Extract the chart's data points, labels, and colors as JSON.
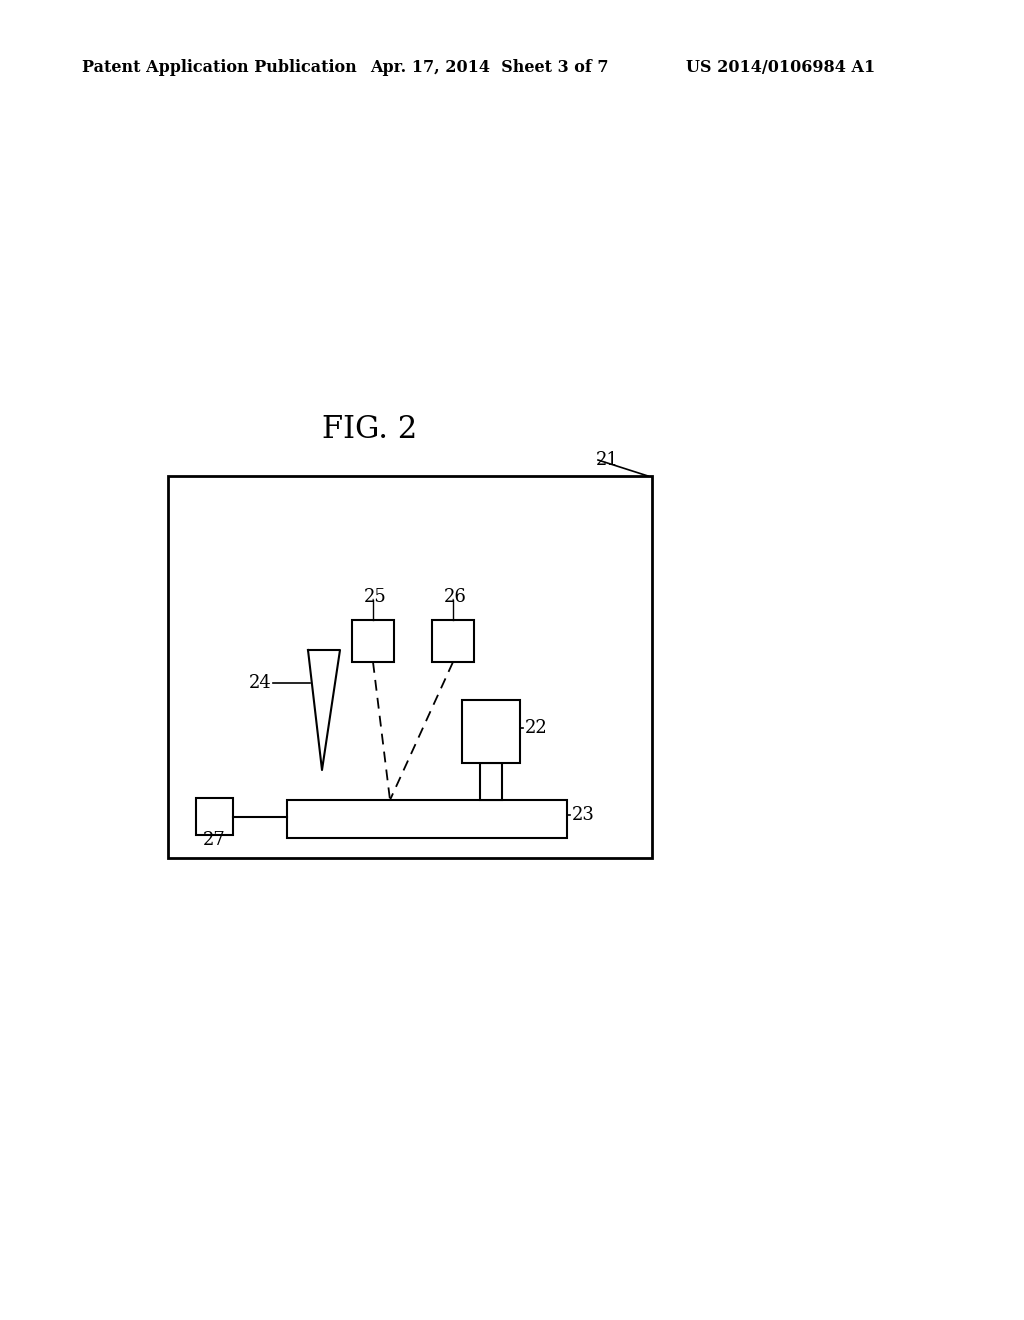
{
  "bg_color": "#ffffff",
  "fig_label": "FIG. 2",
  "header_left": "Patent Application Publication",
  "header_mid": "Apr. 17, 2014  Sheet 3 of 7",
  "header_right": "US 2014/0106984 A1",
  "label_21": "21",
  "label_22": "22",
  "label_23": "23",
  "label_24": "24",
  "label_25": "25",
  "label_26": "26",
  "label_27": "27",
  "line_color": "#000000",
  "font_size_header": 11.5,
  "font_size_fig": 22,
  "font_size_labels": 13
}
